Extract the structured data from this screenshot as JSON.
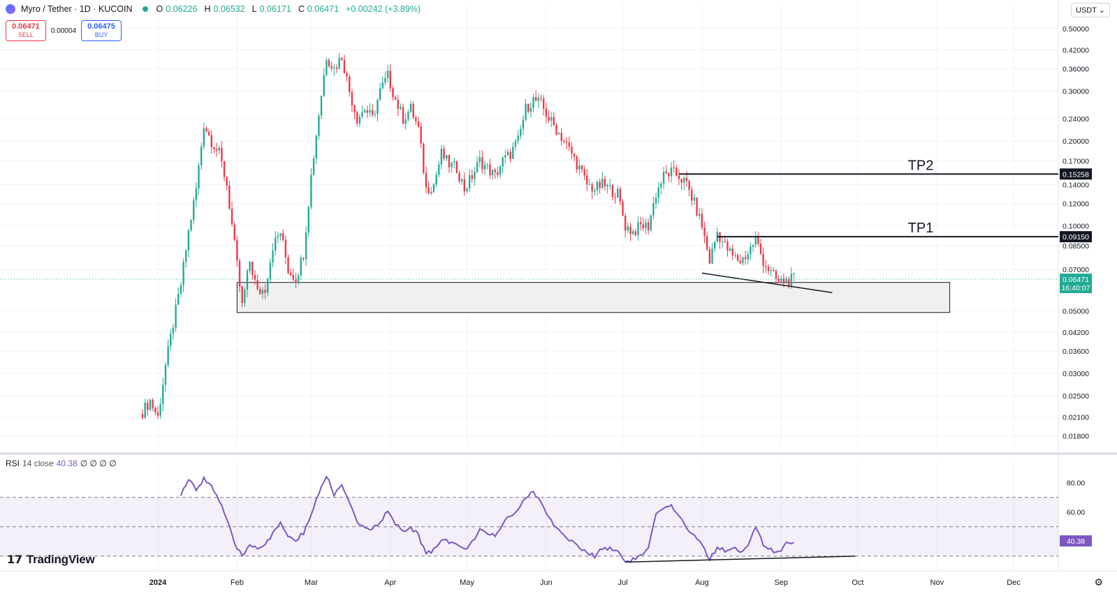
{
  "header": {
    "symbol": "Myro / Tether · 1D · KUCOIN",
    "o_label": "O",
    "o_value": "0.06226",
    "h_label": "H",
    "h_value": "0.06532",
    "l_label": "L",
    "l_value": "0.06171",
    "c_label": "C",
    "c_value": "0.06471",
    "change": "+0.00242 (+3.89%)"
  },
  "trade": {
    "sell_price": "0.06471",
    "sell_label": "SELL",
    "spread": "0.00004",
    "buy_price": "0.06475",
    "buy_label": "BUY"
  },
  "currency": "USDT",
  "rsi": {
    "name": "RSI",
    "params": "14 close",
    "value": "40.38",
    "extras": "∅ ∅ ∅ ∅"
  },
  "branding": "TradingView",
  "colors": {
    "up": "#22ab94",
    "down": "#f23645",
    "rsi": "#7e57c2",
    "zone": "#f0f0f0"
  },
  "chart_data": {
    "type": "candlestick",
    "scale": "log",
    "ylim": [
      0.0165,
      0.52
    ],
    "yticks": [
      0.5,
      0.42,
      0.36,
      0.3,
      0.24,
      0.2,
      0.17,
      0.14,
      0.12,
      0.1,
      0.085,
      0.07,
      0.05,
      0.042,
      0.036,
      0.03,
      0.025,
      0.021,
      0.018
    ],
    "ytick_labels": [
      "0.50000",
      "0.42000",
      "0.36000",
      "0.30000",
      "0.24000",
      "0.20000",
      "0.17000",
      "0.14000",
      "0.12000",
      "0.10000",
      "0.08500",
      "0.07000",
      "0.05000",
      "0.04200",
      "0.03600",
      "0.03000",
      "0.02500",
      "0.02100",
      "0.01800"
    ],
    "x_labels": [
      "2024",
      "Feb",
      "Mar",
      "Apr",
      "May",
      "Jun",
      "Jul",
      "Aug",
      "Sep",
      "Oct",
      "Nov",
      "Dec"
    ],
    "x_label_dates": [
      "2024-01-01",
      "2024-02-01",
      "2024-03-01",
      "2024-04-01",
      "2024-05-01",
      "2024-06-01",
      "2024-07-01",
      "2024-08-01",
      "2024-09-01",
      "2024-10-01",
      "2024-11-01",
      "2024-12-01"
    ],
    "price_path": [
      [
        "2023-12-26",
        0.022
      ],
      [
        "2023-12-29",
        0.024
      ],
      [
        "2024-01-01",
        0.021
      ],
      [
        "2024-01-04",
        0.032
      ],
      [
        "2024-01-07",
        0.045
      ],
      [
        "2024-01-10",
        0.062
      ],
      [
        "2024-01-13",
        0.095
      ],
      [
        "2024-01-16",
        0.135
      ],
      [
        "2024-01-19",
        0.23
      ],
      [
        "2024-01-22",
        0.2
      ],
      [
        "2024-01-25",
        0.18
      ],
      [
        "2024-01-28",
        0.14
      ],
      [
        "2024-01-31",
        0.085
      ],
      [
        "2024-02-03",
        0.052
      ],
      [
        "2024-02-06",
        0.075
      ],
      [
        "2024-02-09",
        0.058
      ],
      [
        "2024-02-12",
        0.06
      ],
      [
        "2024-02-15",
        0.085
      ],
      [
        "2024-02-18",
        0.095
      ],
      [
        "2024-02-21",
        0.07
      ],
      [
        "2024-02-24",
        0.065
      ],
      [
        "2024-02-27",
        0.08
      ],
      [
        "2024-03-01",
        0.15
      ],
      [
        "2024-03-04",
        0.25
      ],
      [
        "2024-03-07",
        0.4
      ],
      [
        "2024-03-10",
        0.36
      ],
      [
        "2024-03-13",
        0.4
      ],
      [
        "2024-03-16",
        0.3
      ],
      [
        "2024-03-19",
        0.24
      ],
      [
        "2024-03-22",
        0.26
      ],
      [
        "2024-03-25",
        0.24
      ],
      [
        "2024-03-28",
        0.3
      ],
      [
        "2024-03-31",
        0.34
      ],
      [
        "2024-04-03",
        0.28
      ],
      [
        "2024-04-06",
        0.24
      ],
      [
        "2024-04-09",
        0.26
      ],
      [
        "2024-04-12",
        0.22
      ],
      [
        "2024-04-15",
        0.135
      ],
      [
        "2024-04-18",
        0.14
      ],
      [
        "2024-04-21",
        0.18
      ],
      [
        "2024-04-24",
        0.165
      ],
      [
        "2024-04-27",
        0.16
      ],
      [
        "2024-04-30",
        0.135
      ],
      [
        "2024-05-03",
        0.15
      ],
      [
        "2024-05-06",
        0.17
      ],
      [
        "2024-05-09",
        0.16
      ],
      [
        "2024-05-12",
        0.15
      ],
      [
        "2024-05-15",
        0.17
      ],
      [
        "2024-05-18",
        0.18
      ],
      [
        "2024-05-21",
        0.2
      ],
      [
        "2024-05-24",
        0.26
      ],
      [
        "2024-05-27",
        0.28
      ],
      [
        "2024-05-30",
        0.27
      ],
      [
        "2024-06-02",
        0.24
      ],
      [
        "2024-06-05",
        0.22
      ],
      [
        "2024-06-08",
        0.2
      ],
      [
        "2024-06-11",
        0.18
      ],
      [
        "2024-06-14",
        0.16
      ],
      [
        "2024-06-17",
        0.14
      ],
      [
        "2024-06-20",
        0.135
      ],
      [
        "2024-06-23",
        0.14
      ],
      [
        "2024-06-26",
        0.135
      ],
      [
        "2024-06-29",
        0.13
      ],
      [
        "2024-07-02",
        0.1
      ],
      [
        "2024-07-05",
        0.095
      ],
      [
        "2024-07-08",
        0.1
      ],
      [
        "2024-07-11",
        0.1
      ],
      [
        "2024-07-14",
        0.13
      ],
      [
        "2024-07-17",
        0.15
      ],
      [
        "2024-07-20",
        0.155
      ],
      [
        "2024-07-23",
        0.15
      ],
      [
        "2024-07-26",
        0.14
      ],
      [
        "2024-07-29",
        0.12
      ],
      [
        "2024-08-01",
        0.1
      ],
      [
        "2024-08-04",
        0.075
      ],
      [
        "2024-08-07",
        0.095
      ],
      [
        "2024-08-10",
        0.085
      ],
      [
        "2024-08-13",
        0.078
      ],
      [
        "2024-08-16",
        0.075
      ],
      [
        "2024-08-19",
        0.08
      ],
      [
        "2024-08-22",
        0.09
      ],
      [
        "2024-08-25",
        0.075
      ],
      [
        "2024-08-28",
        0.068
      ],
      [
        "2024-08-31",
        0.063
      ],
      [
        "2024-09-03",
        0.064
      ],
      [
        "2024-09-06",
        0.0647
      ]
    ],
    "rsi_ylim": [
      20,
      95
    ],
    "rsi_levels": [
      70,
      50,
      30
    ],
    "rsi_ticks": [
      80,
      60
    ],
    "rsi_tick_labels": [
      "80.00",
      "60.00"
    ],
    "rsi_path": [
      [
        "2024-01-10",
        72
      ],
      [
        "2024-01-13",
        82
      ],
      [
        "2024-01-16",
        75
      ],
      [
        "2024-01-19",
        83
      ],
      [
        "2024-01-22",
        78
      ],
      [
        "2024-01-25",
        68
      ],
      [
        "2024-01-28",
        55
      ],
      [
        "2024-01-31",
        38
      ],
      [
        "2024-02-03",
        30
      ],
      [
        "2024-02-06",
        38
      ],
      [
        "2024-02-09",
        36
      ],
      [
        "2024-02-12",
        38
      ],
      [
        "2024-02-15",
        45
      ],
      [
        "2024-02-18",
        52
      ],
      [
        "2024-02-21",
        44
      ],
      [
        "2024-02-24",
        40
      ],
      [
        "2024-02-27",
        46
      ],
      [
        "2024-03-01",
        58
      ],
      [
        "2024-03-04",
        72
      ],
      [
        "2024-03-07",
        85
      ],
      [
        "2024-03-10",
        72
      ],
      [
        "2024-03-13",
        78
      ],
      [
        "2024-03-16",
        66
      ],
      [
        "2024-03-19",
        52
      ],
      [
        "2024-03-22",
        50
      ],
      [
        "2024-03-25",
        48
      ],
      [
        "2024-03-28",
        54
      ],
      [
        "2024-03-31",
        60
      ],
      [
        "2024-04-03",
        52
      ],
      [
        "2024-04-06",
        46
      ],
      [
        "2024-04-09",
        50
      ],
      [
        "2024-04-12",
        44
      ],
      [
        "2024-04-15",
        32
      ],
      [
        "2024-04-18",
        34
      ],
      [
        "2024-04-21",
        42
      ],
      [
        "2024-04-24",
        40
      ],
      [
        "2024-04-27",
        38
      ],
      [
        "2024-04-30",
        34
      ],
      [
        "2024-05-03",
        40
      ],
      [
        "2024-05-06",
        48
      ],
      [
        "2024-05-09",
        44
      ],
      [
        "2024-05-12",
        44
      ],
      [
        "2024-05-15",
        52
      ],
      [
        "2024-05-18",
        58
      ],
      [
        "2024-05-21",
        62
      ],
      [
        "2024-05-24",
        70
      ],
      [
        "2024-05-27",
        74
      ],
      [
        "2024-05-30",
        66
      ],
      [
        "2024-06-02",
        56
      ],
      [
        "2024-06-05",
        50
      ],
      [
        "2024-06-08",
        44
      ],
      [
        "2024-06-11",
        40
      ],
      [
        "2024-06-14",
        36
      ],
      [
        "2024-06-17",
        32
      ],
      [
        "2024-06-20",
        30
      ],
      [
        "2024-06-23",
        36
      ],
      [
        "2024-06-26",
        35
      ],
      [
        "2024-06-29",
        34
      ],
      [
        "2024-07-02",
        26
      ],
      [
        "2024-07-05",
        28
      ],
      [
        "2024-07-08",
        30
      ],
      [
        "2024-07-11",
        35
      ],
      [
        "2024-07-14",
        58
      ],
      [
        "2024-07-17",
        62
      ],
      [
        "2024-07-20",
        64
      ],
      [
        "2024-07-23",
        56
      ],
      [
        "2024-07-26",
        50
      ],
      [
        "2024-07-29",
        44
      ],
      [
        "2024-08-01",
        38
      ],
      [
        "2024-08-04",
        28
      ],
      [
        "2024-08-07",
        36
      ],
      [
        "2024-08-10",
        34
      ],
      [
        "2024-08-13",
        36
      ],
      [
        "2024-08-16",
        34
      ],
      [
        "2024-08-19",
        36
      ],
      [
        "2024-08-22",
        50
      ],
      [
        "2024-08-25",
        38
      ],
      [
        "2024-08-28",
        34
      ],
      [
        "2024-08-31",
        32
      ],
      [
        "2024-09-03",
        38
      ],
      [
        "2024-09-06",
        40.38
      ]
    ],
    "annotations": {
      "tp2": {
        "label": "TP2",
        "price": 0.15258,
        "price_label": "0.15258",
        "from": "2024-07-23"
      },
      "tp1": {
        "label": "TP1",
        "price": 0.0915,
        "price_label": "0.09150",
        "from": "2024-08-07"
      },
      "current": {
        "price": 0.06471,
        "price_label": "0.06471",
        "countdown": "16:40:07"
      },
      "support_zone": {
        "from": "2024-02-01",
        "to": "2024-11-06",
        "high": 0.063,
        "low": 0.0493
      },
      "price_trendline": {
        "from": [
          "2024-08-01",
          0.068
        ],
        "to": [
          "2024-09-21",
          0.058
        ]
      },
      "rsi_trendline": {
        "from": [
          "2024-07-02",
          26
        ],
        "to": [
          "2024-09-30",
          30
        ]
      },
      "rsi_value_label": "40.38"
    }
  }
}
